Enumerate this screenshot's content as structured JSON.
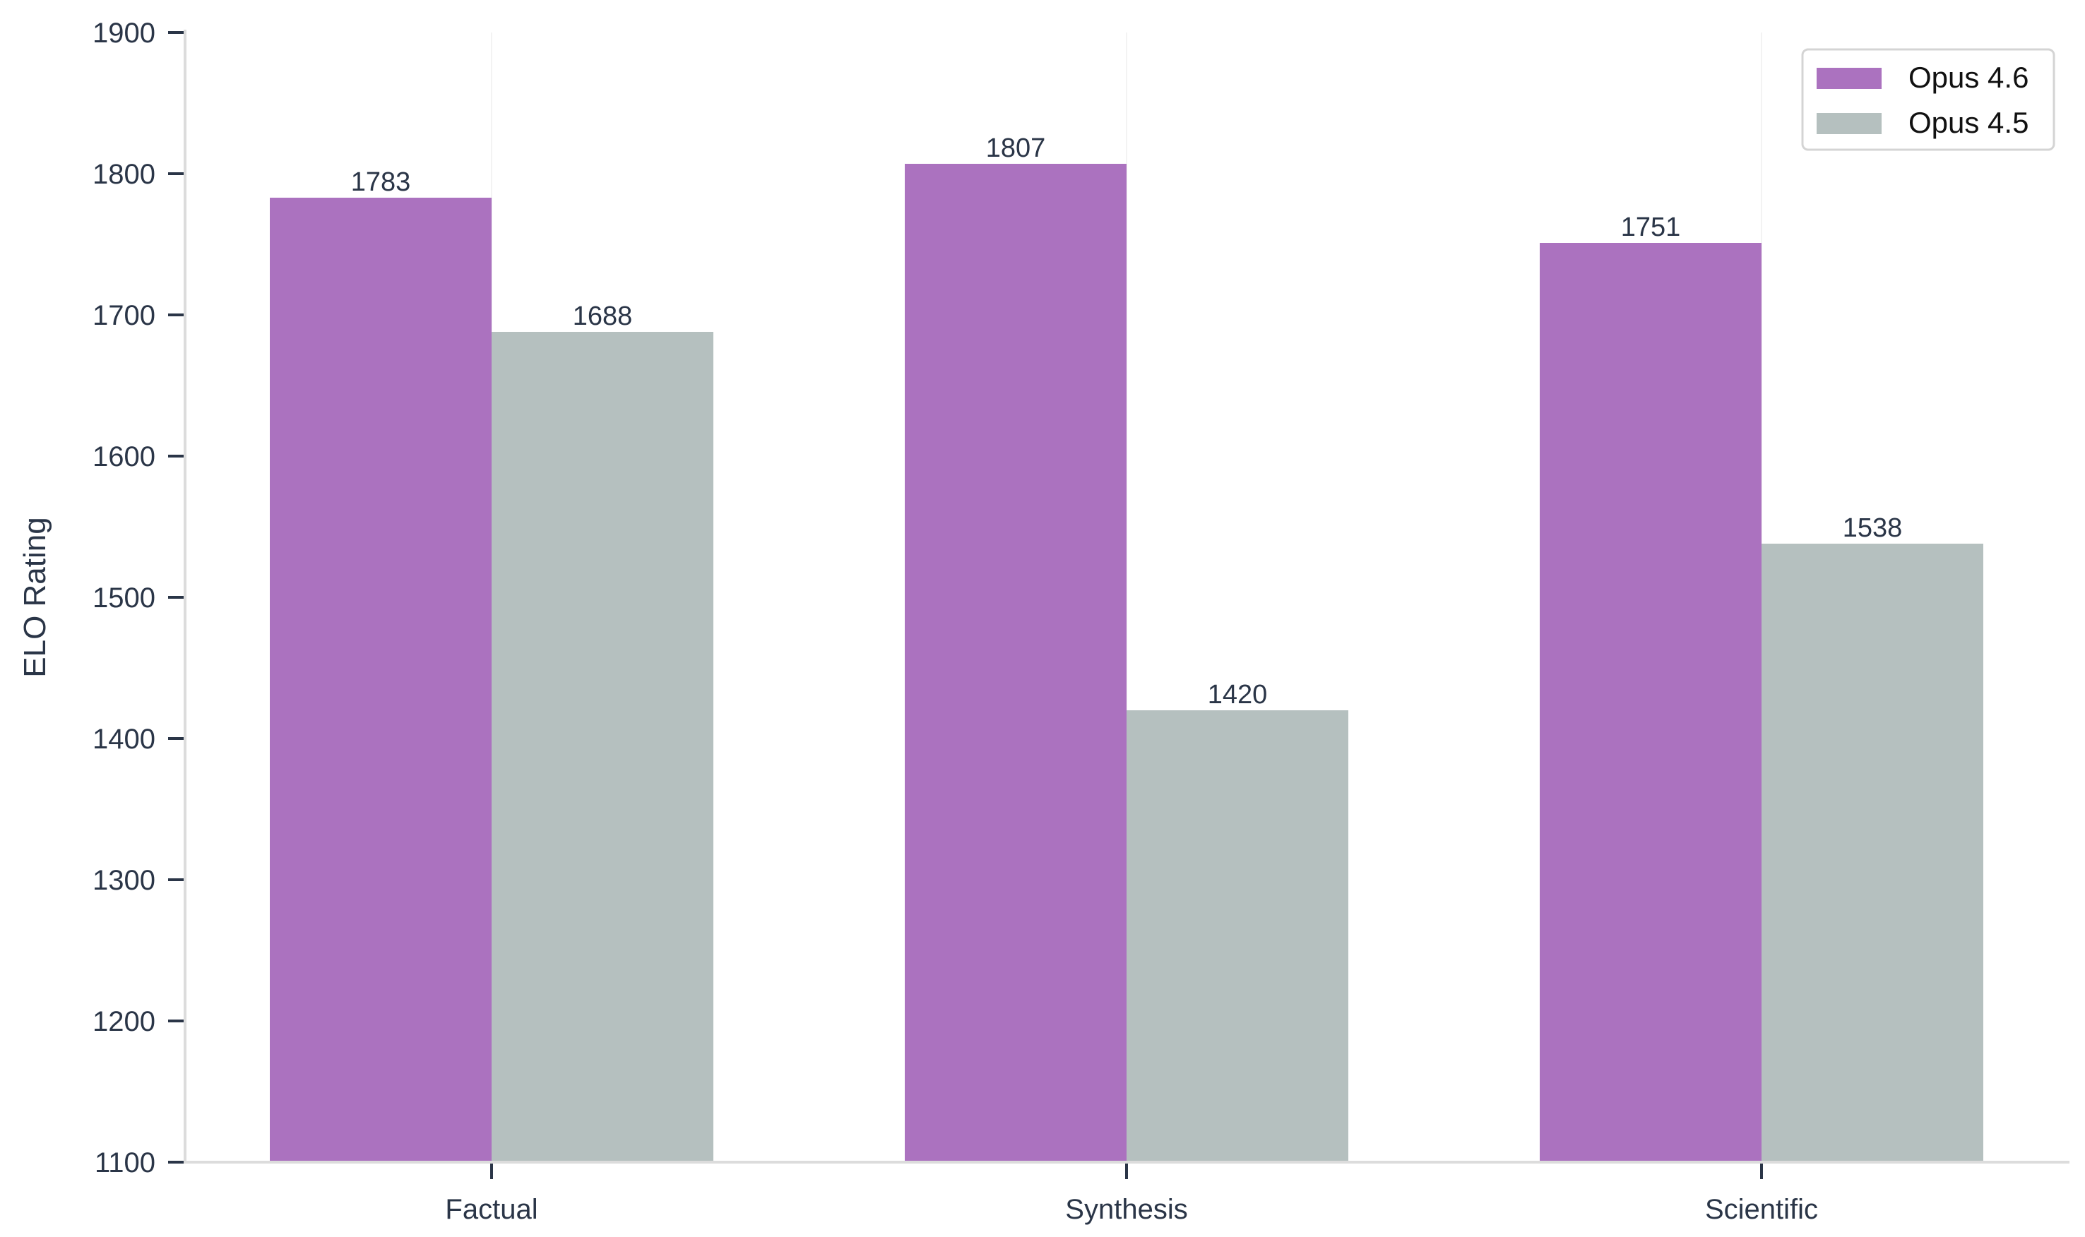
{
  "chart_data": {
    "type": "bar",
    "title": "",
    "xlabel": "",
    "ylabel": "ELO Rating",
    "categories": [
      "Factual",
      "Synthesis",
      "Scientific"
    ],
    "series": [
      {
        "name": "Opus 4.6",
        "color": "#ab72bf",
        "values": [
          1783,
          1807,
          1751
        ]
      },
      {
        "name": "Opus 4.5",
        "color": "#b5c0bf",
        "values": [
          1688,
          1420,
          1538
        ]
      }
    ],
    "ylim": [
      1100,
      1900
    ],
    "yticks": [
      1100,
      1200,
      1300,
      1400,
      1500,
      1600,
      1700,
      1800,
      1900
    ],
    "grid": "vertical-at-categories",
    "legend_position": "top-right",
    "value_labels": true
  }
}
